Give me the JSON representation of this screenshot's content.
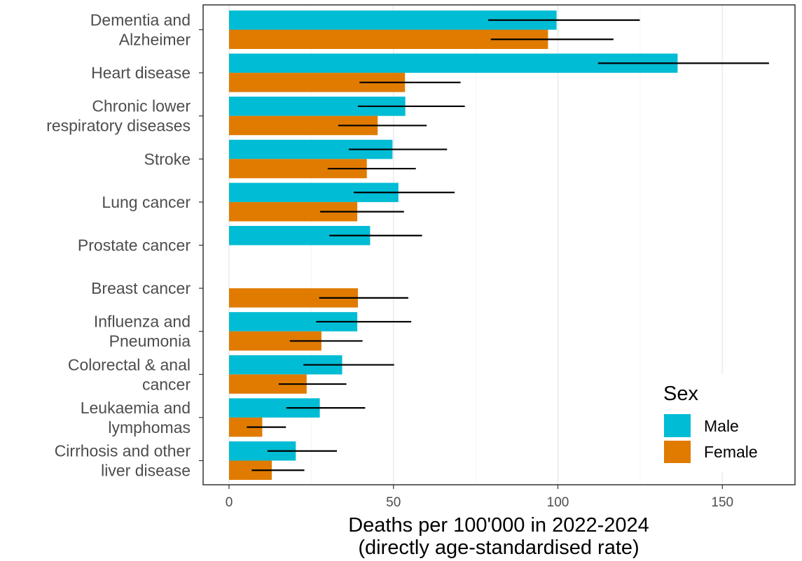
{
  "chart_data": {
    "type": "bar",
    "orientation": "horizontal",
    "xlabel_line1": "Deaths per 100'000 in 2022-2024",
    "xlabel_line2": "(directly age-standardised rate)",
    "xlim": [
      0,
      165
    ],
    "x_ticks": [
      "0",
      "50",
      "100",
      "150"
    ],
    "grid": true,
    "legend": {
      "title": "Sex",
      "placement": "bottom-right",
      "entries": [
        "Male",
        "Female"
      ]
    },
    "series_colors": {
      "Male": "#00BCD4",
      "Female": "#E07B00"
    },
    "categories": [
      {
        "label": [
          "Dementia and",
          "Alzheimer"
        ],
        "male": {
          "value": 99.6,
          "lo": 78.8,
          "hi": 124.9
        },
        "female": {
          "value": 97.0,
          "lo": 79.6,
          "hi": 116.9
        }
      },
      {
        "label": [
          "Heart disease"
        ],
        "male": {
          "value": 136.4,
          "lo": 112.2,
          "hi": 164.2
        },
        "female": {
          "value": 53.5,
          "lo": 39.7,
          "hi": 70.4
        }
      },
      {
        "label": [
          "Chronic lower",
          "respiratory diseases"
        ],
        "male": {
          "value": 53.6,
          "lo": 39.2,
          "hi": 71.7
        },
        "female": {
          "value": 45.2,
          "lo": 33.2,
          "hi": 60.1
        }
      },
      {
        "label": [
          "Stroke"
        ],
        "male": {
          "value": 49.7,
          "lo": 36.4,
          "hi": 66.3
        },
        "female": {
          "value": 41.9,
          "lo": 30.0,
          "hi": 56.8
        }
      },
      {
        "label": [
          "Lung cancer"
        ],
        "male": {
          "value": 51.5,
          "lo": 37.9,
          "hi": 68.6
        },
        "female": {
          "value": 39.0,
          "lo": 27.7,
          "hi": 53.2
        }
      },
      {
        "label": [
          "Prostate cancer"
        ],
        "male": {
          "value": 42.9,
          "lo": 30.5,
          "hi": 58.7
        },
        "female": null
      },
      {
        "label": [
          "Breast cancer"
        ],
        "male": null,
        "female": {
          "value": 39.2,
          "lo": 27.4,
          "hi": 54.5
        }
      },
      {
        "label": [
          "Influenza and",
          "Pneumonia"
        ],
        "male": {
          "value": 39.0,
          "lo": 26.5,
          "hi": 55.4
        },
        "female": {
          "value": 28.1,
          "lo": 18.5,
          "hi": 40.6
        }
      },
      {
        "label": [
          "Colorectal & anal",
          "cancer"
        ],
        "male": {
          "value": 34.4,
          "lo": 22.6,
          "hi": 50.2
        },
        "female": {
          "value": 23.6,
          "lo": 15.1,
          "hi": 35.7
        }
      },
      {
        "label": [
          "Leukaemia and",
          "lymphomas"
        ],
        "male": {
          "value": 27.6,
          "lo": 17.4,
          "hi": 41.4
        },
        "female": {
          "value": 10.1,
          "lo": 5.4,
          "hi": 17.3
        }
      },
      {
        "label": [
          "Cirrhosis and other",
          "liver disease"
        ],
        "male": {
          "value": 20.3,
          "lo": 11.7,
          "hi": 32.8
        },
        "female": {
          "value": 13.0,
          "lo": 6.9,
          "hi": 22.9
        }
      }
    ]
  }
}
